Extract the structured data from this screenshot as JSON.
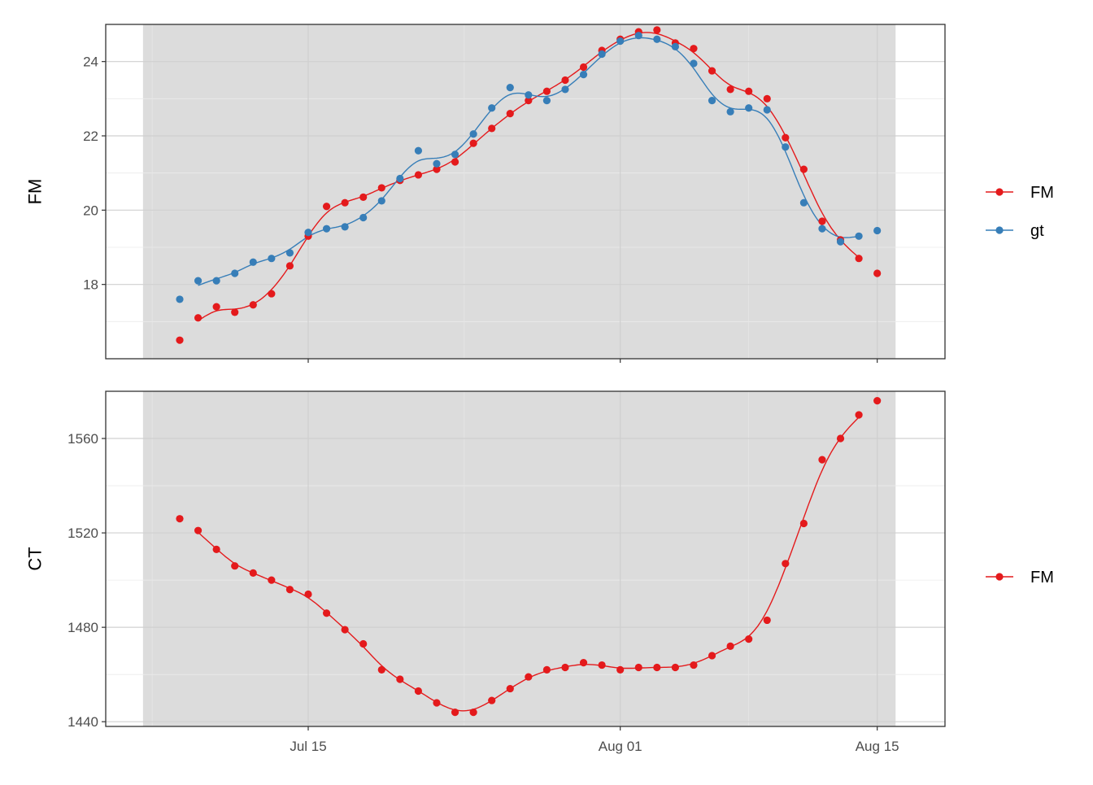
{
  "chart_data": {
    "type": "line",
    "x_axis": {
      "type": "date",
      "ticks": [
        {
          "date": "2023-07-15",
          "label": "Jul 15"
        },
        {
          "date": "2023-08-01",
          "label": "Aug 01"
        },
        {
          "date": "2023-08-15",
          "label": "Aug 15"
        }
      ]
    },
    "background_band": {
      "from": "2023-07-06",
      "to": "2023-08-16",
      "color": "#dcdcdc"
    },
    "panels": [
      {
        "ylabel": "FM",
        "ylim": [
          16,
          25
        ],
        "yticks": [
          18,
          20,
          22,
          24
        ],
        "legend": [
          {
            "label": "FM",
            "color": "#e41a1c"
          },
          {
            "label": "gt",
            "color": "#377eb8"
          }
        ],
        "series": [
          {
            "name": "FM",
            "color": "#e41a1c",
            "points": [
              [
                "2023-07-08",
                16.5
              ],
              [
                "2023-07-09",
                17.1
              ],
              [
                "2023-07-10",
                17.4
              ],
              [
                "2023-07-11",
                17.25
              ],
              [
                "2023-07-12",
                17.45
              ],
              [
                "2023-07-13",
                17.75
              ],
              [
                "2023-07-14",
                18.5
              ],
              [
                "2023-07-15",
                19.3
              ],
              [
                "2023-07-16",
                20.1
              ],
              [
                "2023-07-17",
                20.2
              ],
              [
                "2023-07-18",
                20.35
              ],
              [
                "2023-07-19",
                20.6
              ],
              [
                "2023-07-20",
                20.8
              ],
              [
                "2023-07-21",
                20.95
              ],
              [
                "2023-07-22",
                21.1
              ],
              [
                "2023-07-23",
                21.3
              ],
              [
                "2023-07-24",
                21.8
              ],
              [
                "2023-07-25",
                22.2
              ],
              [
                "2023-07-26",
                22.6
              ],
              [
                "2023-07-27",
                22.95
              ],
              [
                "2023-07-28",
                23.2
              ],
              [
                "2023-07-29",
                23.5
              ],
              [
                "2023-07-30",
                23.85
              ],
              [
                "2023-07-31",
                24.3
              ],
              [
                "2023-08-01",
                24.6
              ],
              [
                "2023-08-02",
                24.8
              ],
              [
                "2023-08-03",
                24.85
              ],
              [
                "2023-08-04",
                24.5
              ],
              [
                "2023-08-05",
                24.35
              ],
              [
                "2023-08-06",
                23.75
              ],
              [
                "2023-08-07",
                23.25
              ],
              [
                "2023-08-08",
                23.2
              ],
              [
                "2023-08-09",
                23.0
              ],
              [
                "2023-08-10",
                21.95
              ],
              [
                "2023-08-11",
                21.1
              ],
              [
                "2023-08-12",
                19.7
              ],
              [
                "2023-08-13",
                19.2
              ],
              [
                "2023-08-14",
                18.7
              ],
              [
                "2023-08-15",
                18.3
              ]
            ]
          },
          {
            "name": "gt",
            "color": "#377eb8",
            "points": [
              [
                "2023-07-08",
                17.6
              ],
              [
                "2023-07-09",
                18.1
              ],
              [
                "2023-07-10",
                18.1
              ],
              [
                "2023-07-11",
                18.3
              ],
              [
                "2023-07-12",
                18.6
              ],
              [
                "2023-07-13",
                18.7
              ],
              [
                "2023-07-14",
                18.85
              ],
              [
                "2023-07-15",
                19.4
              ],
              [
                "2023-07-16",
                19.5
              ],
              [
                "2023-07-17",
                19.55
              ],
              [
                "2023-07-18",
                19.8
              ],
              [
                "2023-07-19",
                20.25
              ],
              [
                "2023-07-20",
                20.85
              ],
              [
                "2023-07-21",
                21.6
              ],
              [
                "2023-07-22",
                21.25
              ],
              [
                "2023-07-23",
                21.5
              ],
              [
                "2023-07-24",
                22.05
              ],
              [
                "2023-07-25",
                22.75
              ],
              [
                "2023-07-26",
                23.3
              ],
              [
                "2023-07-27",
                23.1
              ],
              [
                "2023-07-28",
                22.95
              ],
              [
                "2023-07-29",
                23.25
              ],
              [
                "2023-07-30",
                23.65
              ],
              [
                "2023-07-31",
                24.2
              ],
              [
                "2023-08-01",
                24.55
              ],
              [
                "2023-08-02",
                24.7
              ],
              [
                "2023-08-03",
                24.6
              ],
              [
                "2023-08-04",
                24.4
              ],
              [
                "2023-08-05",
                23.95
              ],
              [
                "2023-08-06",
                22.95
              ],
              [
                "2023-08-07",
                22.65
              ],
              [
                "2023-08-08",
                22.75
              ],
              [
                "2023-08-09",
                22.7
              ],
              [
                "2023-08-10",
                21.7
              ],
              [
                "2023-08-11",
                20.2
              ],
              [
                "2023-08-12",
                19.5
              ],
              [
                "2023-08-13",
                19.15
              ],
              [
                "2023-08-14",
                19.3
              ],
              [
                "2023-08-15",
                19.45
              ]
            ]
          }
        ]
      },
      {
        "ylabel": "CT",
        "ylim": [
          1438,
          1580
        ],
        "yticks": [
          1440,
          1480,
          1520,
          1560
        ],
        "legend": [
          {
            "label": "FM",
            "color": "#e41a1c"
          }
        ],
        "series": [
          {
            "name": "FM",
            "color": "#e41a1c",
            "points": [
              [
                "2023-07-08",
                1526
              ],
              [
                "2023-07-09",
                1521
              ],
              [
                "2023-07-10",
                1513
              ],
              [
                "2023-07-11",
                1506
              ],
              [
                "2023-07-12",
                1503
              ],
              [
                "2023-07-13",
                1500
              ],
              [
                "2023-07-14",
                1496
              ],
              [
                "2023-07-15",
                1494
              ],
              [
                "2023-07-16",
                1486
              ],
              [
                "2023-07-17",
                1479
              ],
              [
                "2023-07-18",
                1473
              ],
              [
                "2023-07-19",
                1462
              ],
              [
                "2023-07-20",
                1458
              ],
              [
                "2023-07-21",
                1453
              ],
              [
                "2023-07-22",
                1448
              ],
              [
                "2023-07-23",
                1444
              ],
              [
                "2023-07-24",
                1444
              ],
              [
                "2023-07-25",
                1449
              ],
              [
                "2023-07-26",
                1454
              ],
              [
                "2023-07-27",
                1459
              ],
              [
                "2023-07-28",
                1462
              ],
              [
                "2023-07-29",
                1463
              ],
              [
                "2023-07-30",
                1465
              ],
              [
                "2023-07-31",
                1464
              ],
              [
                "2023-08-01",
                1462
              ],
              [
                "2023-08-02",
                1463
              ],
              [
                "2023-08-03",
                1463
              ],
              [
                "2023-08-04",
                1463
              ],
              [
                "2023-08-05",
                1464
              ],
              [
                "2023-08-06",
                1468
              ],
              [
                "2023-08-07",
                1472
              ],
              [
                "2023-08-08",
                1475
              ],
              [
                "2023-08-09",
                1483
              ],
              [
                "2023-08-10",
                1507
              ],
              [
                "2023-08-11",
                1524
              ],
              [
                "2023-08-12",
                1551
              ],
              [
                "2023-08-13",
                1560
              ],
              [
                "2023-08-14",
                1570
              ],
              [
                "2023-08-15",
                1576
              ]
            ]
          }
        ]
      }
    ]
  }
}
